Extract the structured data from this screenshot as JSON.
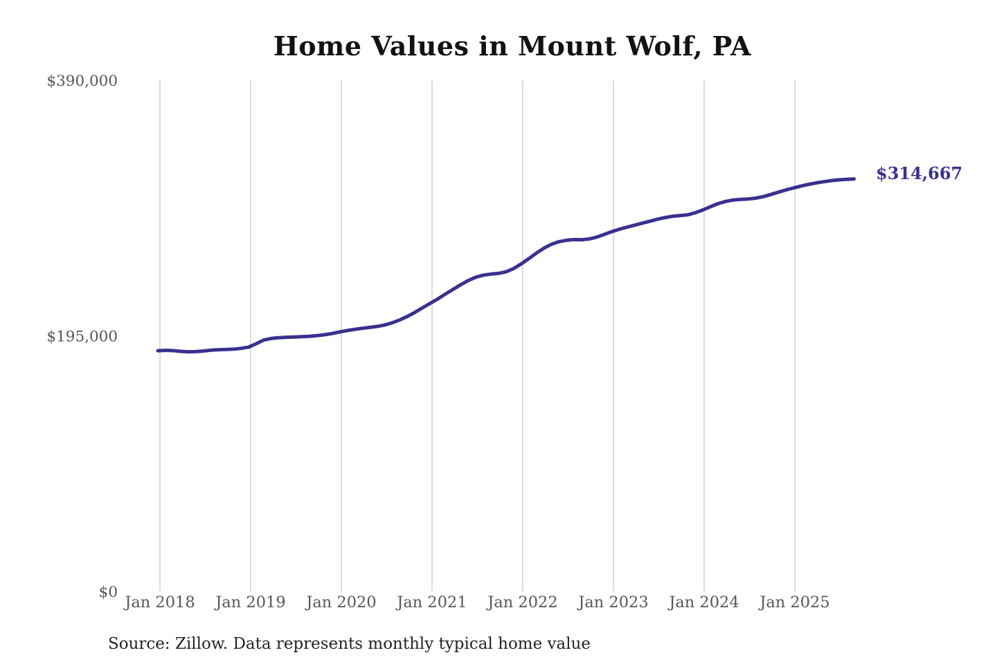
{
  "title": "Home Values in Mount Wolf, PA",
  "end_label": "$314,667",
  "source_note": "Source: Zillow. Data represents monthly typical home value",
  "colors": {
    "line": "#39318f",
    "grid": "#c9c9c9",
    "axis_text": "#565656",
    "title_text": "#121212",
    "source_text": "#232323",
    "background": "#ffffff",
    "end_label_text": "#39318f"
  },
  "chart_data": {
    "type": "line",
    "title": "Home Values in Mount Wolf, PA",
    "x_frequency": "monthly",
    "x_start": "Jan 2018",
    "x_end": "Sep 2025",
    "x_tick_labels": [
      "Jan 2018",
      "Jan 2019",
      "Jan 2020",
      "Jan 2021",
      "Jan 2022",
      "Jan 2023",
      "Jan 2024",
      "Jan 2025"
    ],
    "y_tick_labels": [
      "$0",
      "$195,000",
      "$390,000"
    ],
    "y_tick_values": [
      0,
      195000,
      390000
    ],
    "ylim": [
      0,
      390000
    ],
    "grid": "vertical-only",
    "legend": "none",
    "last_value": 314667,
    "last_value_label": "$314,667",
    "series": [
      {
        "name": "Monthly typical home value",
        "values": [
          183600,
          183900,
          183700,
          183100,
          182800,
          182900,
          183400,
          184000,
          184400,
          184600,
          184800,
          185400,
          186400,
          189000,
          191800,
          193000,
          193600,
          193900,
          194100,
          194300,
          194600,
          195100,
          195800,
          196700,
          197900,
          199000,
          199900,
          200700,
          201400,
          202200,
          203300,
          205000,
          207200,
          209900,
          213000,
          216400,
          219800,
          223200,
          226800,
          230400,
          233900,
          237100,
          239700,
          241300,
          242100,
          242600,
          243800,
          246300,
          249800,
          253800,
          258000,
          261800,
          264800,
          266800,
          267900,
          268400,
          268300,
          268900,
          270300,
          272400,
          274500,
          276300,
          277900,
          279400,
          280900,
          282400,
          283900,
          285200,
          286200,
          286800,
          287300,
          288900,
          291000,
          293500,
          295800,
          297500,
          298600,
          299100,
          299400,
          300000,
          301200,
          302800,
          304600,
          306300,
          307800,
          309300,
          310600,
          311700,
          312600,
          313400,
          314000,
          314400,
          314667
        ]
      }
    ]
  }
}
